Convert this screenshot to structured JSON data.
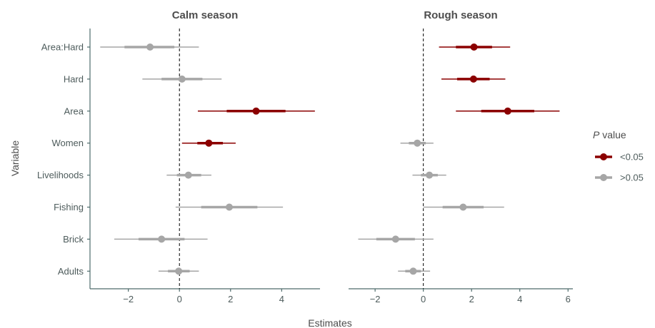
{
  "chart_data": {
    "type": "forest",
    "xlabel": "Estimates",
    "ylabel": "Variable",
    "variables": [
      "Adults",
      "Brick",
      "Fishing",
      "Livelihoods",
      "Women",
      "Area",
      "Hard",
      "Area:Hard"
    ],
    "legend": {
      "title_italic": "P",
      "title_rest": " value",
      "placement": "right",
      "entries": [
        {
          "label": "<0.05",
          "color": "#8b0000"
        },
        {
          "label": ">0.05",
          "color": "#a6a6a6"
        }
      ]
    },
    "panels": [
      {
        "title": "Calm season",
        "xlim": [
          -3.5,
          5.5
        ],
        "xticks": [
          -2,
          0,
          2,
          4
        ],
        "xtick_labels": [
          "−2",
          "0",
          "2",
          "4"
        ],
        "rows": [
          {
            "variable": "Adults",
            "estimate": -0.03,
            "ci_inner": [
              -0.45,
              0.4
            ],
            "ci_outer": [
              -0.82,
              0.76
            ],
            "significant": false
          },
          {
            "variable": "Brick",
            "estimate": -0.7,
            "ci_inner": [
              -1.6,
              0.2
            ],
            "ci_outer": [
              -2.55,
              1.1
            ],
            "significant": false
          },
          {
            "variable": "Fishing",
            "estimate": 1.95,
            "ci_inner": [
              0.85,
              3.05
            ],
            "ci_outer": [
              -0.15,
              4.05
            ],
            "significant": false
          },
          {
            "variable": "Livelihoods",
            "estimate": 0.35,
            "ci_inner": [
              -0.1,
              0.85
            ],
            "ci_outer": [
              -0.5,
              1.25
            ],
            "significant": false
          },
          {
            "variable": "Women",
            "estimate": 1.15,
            "ci_inner": [
              0.7,
              1.7
            ],
            "ci_outer": [
              0.1,
              2.2
            ],
            "significant": true
          },
          {
            "variable": "Area",
            "estimate": 3.0,
            "ci_inner": [
              1.85,
              4.15
            ],
            "ci_outer": [
              0.72,
              5.3
            ],
            "significant": true
          },
          {
            "variable": "Hard",
            "estimate": 0.1,
            "ci_inner": [
              -0.7,
              0.9
            ],
            "ci_outer": [
              -1.45,
              1.65
            ],
            "significant": false
          },
          {
            "variable": "Area:Hard",
            "estimate": -1.15,
            "ci_inner": [
              -2.15,
              -0.2
            ],
            "ci_outer": [
              -3.1,
              0.76
            ],
            "significant": false
          }
        ]
      },
      {
        "title": "Rough season",
        "xlim": [
          -3.1,
          6.2
        ],
        "xticks": [
          -2,
          0,
          2,
          4,
          6
        ],
        "xtick_labels": [
          "−2",
          "0",
          "2",
          "4",
          "6"
        ],
        "rows": [
          {
            "variable": "Adults",
            "estimate": -0.42,
            "ci_inner": [
              -0.75,
              -0.1
            ],
            "ci_outer": [
              -1.05,
              0.28
            ],
            "significant": false
          },
          {
            "variable": "Brick",
            "estimate": -1.15,
            "ci_inner": [
              -1.95,
              -0.35
            ],
            "ci_outer": [
              -2.7,
              0.42
            ],
            "significant": false
          },
          {
            "variable": "Fishing",
            "estimate": 1.65,
            "ci_inner": [
              0.8,
              2.5
            ],
            "ci_outer": [
              0.0,
              3.35
            ],
            "significant": false
          },
          {
            "variable": "Livelihoods",
            "estimate": 0.25,
            "ci_inner": [
              -0.1,
              0.6
            ],
            "ci_outer": [
              -0.45,
              0.95
            ],
            "significant": false
          },
          {
            "variable": "Women",
            "estimate": -0.25,
            "ci_inner": [
              -0.6,
              0.1
            ],
            "ci_outer": [
              -0.95,
              0.42
            ],
            "significant": false
          },
          {
            "variable": "Area",
            "estimate": 3.5,
            "ci_inner": [
              2.4,
              4.6
            ],
            "ci_outer": [
              1.35,
              5.65
            ],
            "significant": true
          },
          {
            "variable": "Hard",
            "estimate": 2.08,
            "ci_inner": [
              1.4,
              2.75
            ],
            "ci_outer": [
              0.75,
              3.4
            ],
            "significant": true
          },
          {
            "variable": "Area:Hard",
            "estimate": 2.1,
            "ci_inner": [
              1.35,
              2.85
            ],
            "ci_outer": [
              0.65,
              3.6
            ],
            "significant": true
          }
        ]
      }
    ]
  }
}
